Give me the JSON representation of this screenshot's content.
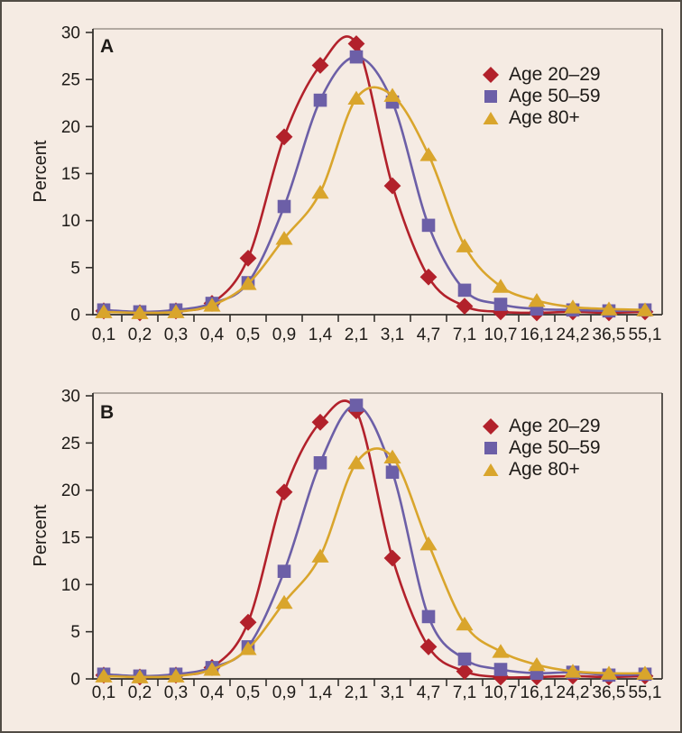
{
  "figure": {
    "background": "#f5ebe3",
    "border_color": "#514c45",
    "axis_color": "#33302c",
    "frame_top_color": "#9c938b",
    "text_color": "#1e1b18"
  },
  "chart_data": [
    {
      "type": "line",
      "panel": "A",
      "ylabel": "Percent",
      "ylim": [
        0,
        30
      ],
      "yticks": [
        0,
        5,
        10,
        15,
        20,
        25,
        30
      ],
      "grid": false,
      "legend_position": "upper right",
      "categories": [
        "0,1",
        "0,2",
        "0,3",
        "0,4",
        "0,5",
        "0,9",
        "1,4",
        "2,1",
        "3,1",
        "4,7",
        "7,1",
        "10,7",
        "16,1",
        "24,2",
        "36,5",
        "55,1"
      ],
      "series": [
        {
          "name": "Age 20–29",
          "marker": "diamond",
          "color": "#b2212b",
          "values": [
            0.4,
            0.2,
            0.4,
            1.2,
            6.0,
            18.9,
            26.5,
            28.8,
            13.7,
            4.0,
            0.9,
            0.3,
            0.2,
            0.3,
            0.2,
            0.3
          ]
        },
        {
          "name": "Age 50–59",
          "marker": "square",
          "color": "#6c5fa7",
          "values": [
            0.5,
            0.3,
            0.5,
            1.2,
            3.4,
            11.5,
            22.8,
            27.4,
            22.6,
            9.5,
            2.6,
            1.1,
            0.6,
            0.5,
            0.4,
            0.5
          ]
        },
        {
          "name": "Age 80+",
          "marker": "triangle",
          "color": "#d9a52c",
          "values": [
            0.3,
            0.2,
            0.3,
            1.0,
            3.3,
            8.1,
            13.0,
            23.0,
            23.3,
            17.0,
            7.3,
            3.0,
            1.5,
            0.8,
            0.6,
            0.5
          ]
        }
      ]
    },
    {
      "type": "line",
      "panel": "B",
      "ylabel": "Percent",
      "ylim": [
        0,
        30
      ],
      "yticks": [
        0,
        5,
        10,
        15,
        20,
        25,
        30
      ],
      "grid": false,
      "legend_position": "upper right",
      "categories": [
        "0,1",
        "0,2",
        "0,3",
        "0,4",
        "0,5",
        "0,9",
        "1,4",
        "2,1",
        "3,1",
        "4,7",
        "7,1",
        "10,7",
        "16,1",
        "24,2",
        "36,5",
        "55,1"
      ],
      "series": [
        {
          "name": "Age 20–29",
          "marker": "diamond",
          "color": "#b2212b",
          "values": [
            0.4,
            0.2,
            0.4,
            1.2,
            6.0,
            19.8,
            27.2,
            28.4,
            12.8,
            3.4,
            0.8,
            0.2,
            0.2,
            0.3,
            0.2,
            0.3
          ]
        },
        {
          "name": "Age 50–59",
          "marker": "square",
          "color": "#6c5fa7",
          "values": [
            0.5,
            0.3,
            0.5,
            1.2,
            3.4,
            11.4,
            22.9,
            29.0,
            21.9,
            6.6,
            2.1,
            1.0,
            0.6,
            0.7,
            0.4,
            0.5
          ]
        },
        {
          "name": "Age 80+",
          "marker": "triangle",
          "color": "#d9a52c",
          "values": [
            0.3,
            0.2,
            0.3,
            1.0,
            3.2,
            8.1,
            13.0,
            22.9,
            23.5,
            14.3,
            5.8,
            2.9,
            1.5,
            0.8,
            0.6,
            0.6
          ]
        }
      ]
    }
  ]
}
